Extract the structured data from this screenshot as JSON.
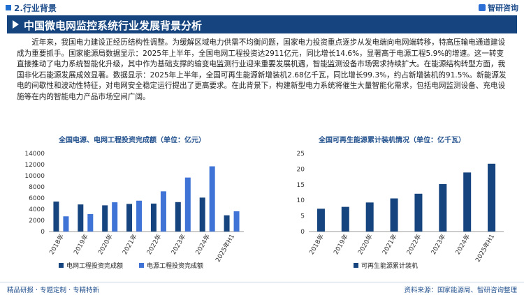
{
  "header": {
    "section": "2.行业背景",
    "logo": "智研咨询"
  },
  "title": "中国微电网监控系统行业发展背景分析",
  "paragraph": "近年来，我国电力建设正经历结构性调整。为缓解区域电力供需不均衡问题，国家电力投资重点逐步从发电端向电网端转移，特高压输电通道建设成为重要抓手。国家能源局数据显示：2025年上半年，全国电网工程投资达2911亿元，同比增长14.6%，显著高于电源工程5.9%的增速。这一转变直接推动了电力系统智能化升级，其中作为基础支撑的输变电监测行业迎来重要发展机遇，智能监测设备市场需求持续扩大。在能源结构转型方面，我国非化石能源发展成效显著。数据显示：2025年上半年，全国可再生能源新增装机2.68亿千瓦，同比增长99.3%，约占新增装机的91.5%。新能源发电的间歇性和波动性特征，对电网安全稳定运行提出了更高要求。在此背景下，构建新型电力系统将催生大量智能化需求，包括电网监测设备、充电设施等在内的智能电力产品市场空间广阔。",
  "footer": {
    "left": "精品研报 · 专题定制 · 专精特新",
    "right": "资料来源：国家能源局、智研咨询整理"
  },
  "chart_data": [
    {
      "type": "bar",
      "title": "全国电源、电网工程投资完成额（单位：亿元）",
      "categories": [
        "2018年",
        "2019年",
        "2020年",
        "2021年",
        "2022年",
        "2023年",
        "2024年",
        "2025年H1"
      ],
      "series": [
        {
          "name": "电网工程投资完成额",
          "color": "#16447e",
          "values": [
            5373,
            4856,
            4699,
            4951,
            5012,
            5275,
            6083,
            2911
          ]
        },
        {
          "name": "电源工程投资完成额",
          "color": "#3f73d6",
          "values": [
            2721,
            3139,
            5244,
            5530,
            7208,
            9675,
            11687,
            3635
          ]
        }
      ],
      "yticks": [
        "0",
        "2000",
        "4000",
        "6000",
        "8000",
        "10000",
        "12000",
        "14000"
      ],
      "ylim": [
        0,
        14000
      ]
    },
    {
      "type": "bar",
      "title": "全国可再生能源累计装机情况（单位：亿千瓦）",
      "categories": [
        "2018年",
        "2019年",
        "2020年",
        "2021年",
        "2022年",
        "2023年",
        "2024年",
        "2025年H1"
      ],
      "series": [
        {
          "name": "可再生能源累计装机",
          "color": "#16447e",
          "values": [
            7.3,
            7.9,
            9.3,
            10.6,
            12.1,
            15.2,
            18.9,
            21.7
          ]
        }
      ],
      "yticks": [
        "0",
        "5",
        "10",
        "15",
        "20",
        "25"
      ],
      "ylim": [
        0,
        25
      ]
    }
  ]
}
